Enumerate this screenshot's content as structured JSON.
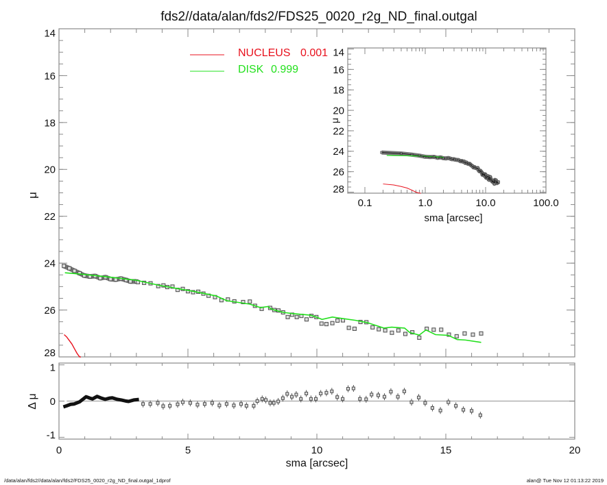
{
  "title": "fds2//data/alan/fds2/FDS25_0020_r2g_ND_final.outgal",
  "footer_left": "/data/alan/fds2//data/alan/fds2/FDS25_0020_r2g_ND_final.outgal_1dprof",
  "footer_right": "alan@  Tue Nov 12 01:13:22 2019",
  "colors": {
    "nucleus": "#e8101c",
    "disk": "#22e01c",
    "points": "#555555",
    "zero_line": "#b0b0b0"
  },
  "chart_data": [
    {
      "type": "scatter",
      "panel": "main profile",
      "xlabel": "",
      "ylabel": "μ",
      "xlim": [
        0,
        20
      ],
      "ylim": [
        28,
        14
      ],
      "y_inverted": true,
      "xticks": [
        0,
        5,
        10,
        15,
        20
      ],
      "yticks": [
        14,
        16,
        18,
        20,
        22,
        24,
        26,
        28
      ],
      "legend": [
        {
          "name": "NUCLEUS",
          "value": "0.001",
          "color": "#e8101c"
        },
        {
          "name": "DISK",
          "value": "0.999",
          "color": "#22e01c"
        }
      ],
      "legend_placement": "top-center",
      "observed_dense": {
        "x": [
          0.19,
          0.4,
          0.6,
          0.8,
          0.98,
          1.2,
          1.4,
          1.6,
          1.8,
          2.0,
          2.2,
          2.4,
          2.6,
          2.77,
          3.0
        ],
        "y": [
          24.12,
          24.22,
          24.33,
          24.43,
          24.53,
          24.57,
          24.55,
          24.64,
          24.6,
          24.68,
          24.7,
          24.66,
          24.72,
          24.78,
          24.78
        ]
      },
      "observed": {
        "x": [
          3.06,
          3.3,
          3.55,
          3.85,
          4.05,
          4.2,
          4.4,
          4.6,
          4.8,
          5.0,
          5.2,
          5.4,
          5.6,
          5.8,
          6.05,
          6.3,
          6.55,
          6.8,
          7.14,
          7.4,
          7.6,
          7.86,
          8.19,
          8.35,
          8.51,
          8.69,
          8.87,
          9.04,
          9.22,
          9.4,
          9.6,
          9.79,
          9.98,
          10.18,
          10.37,
          10.6,
          10.8,
          11.01,
          11.24,
          11.46,
          11.69,
          11.92,
          12.16,
          12.4,
          12.65,
          12.91,
          13.16,
          13.43,
          13.7,
          13.97,
          14.26,
          14.53,
          14.82,
          15.12,
          15.42,
          15.73,
          16.05,
          16.37
        ],
        "y": [
          24.81,
          24.84,
          24.86,
          24.98,
          24.95,
          25.02,
          25.0,
          25.14,
          25.1,
          25.2,
          25.24,
          25.22,
          25.3,
          25.39,
          25.45,
          25.58,
          25.55,
          25.63,
          25.66,
          25.64,
          25.82,
          25.95,
          25.91,
          26.0,
          26.02,
          26.1,
          26.3,
          26.2,
          26.3,
          26.25,
          26.4,
          26.25,
          26.3,
          26.58,
          26.6,
          26.56,
          26.45,
          26.44,
          26.76,
          26.8,
          26.51,
          26.52,
          26.74,
          26.82,
          26.87,
          26.97,
          26.87,
          27.02,
          26.95,
          27.18,
          26.8,
          26.84,
          26.84,
          27.05,
          27.12,
          27.0,
          27.05,
          27.0
        ]
      },
      "disk_model": {
        "x": [
          0.23,
          0.98,
          2.0,
          3.0,
          3.9,
          5.2,
          6.1,
          6.5,
          7.4,
          7.82,
          8.1,
          8.19,
          8.35,
          8.7,
          9.04,
          9.75,
          9.98,
          10.2,
          10.6,
          11.5,
          11.96,
          12.6,
          12.9,
          13.4,
          13.6,
          13.97,
          14.23,
          14.6,
          15.1,
          15.44,
          15.76,
          16.37
        ],
        "y": [
          24.41,
          24.48,
          24.6,
          24.73,
          24.95,
          25.2,
          25.4,
          25.6,
          25.75,
          25.9,
          25.85,
          25.93,
          26.0,
          26.1,
          26.15,
          26.22,
          26.3,
          26.4,
          26.3,
          26.44,
          26.54,
          26.77,
          26.73,
          26.77,
          26.96,
          27.07,
          26.85,
          27.05,
          27.08,
          27.26,
          27.28,
          27.38
        ]
      },
      "nucleus_model": {
        "x": [
          0.2,
          0.3,
          0.4,
          0.5,
          0.6,
          0.7,
          0.8,
          0.85
        ],
        "y": [
          27.05,
          27.15,
          27.3,
          27.45,
          27.65,
          27.85,
          28.05,
          28.15
        ]
      }
    },
    {
      "type": "scatter",
      "panel": "residuals",
      "xlabel": "sma [arcsec]",
      "ylabel": "Δ μ",
      "xlim": [
        0,
        20
      ],
      "ylim": [
        -1.05,
        1.05
      ],
      "xticks": [
        0,
        5,
        10,
        15,
        20
      ],
      "yticks": [
        -1,
        0,
        1
      ],
      "residual_dense": {
        "x": [
          0.17,
          0.3,
          0.45,
          0.59,
          0.8,
          1.05,
          1.2,
          1.3,
          1.48,
          1.65,
          1.79,
          1.95,
          2.07,
          2.25,
          2.42,
          2.6,
          2.7,
          2.9,
          3.1
        ],
        "y": [
          -0.16,
          -0.13,
          -0.09,
          -0.08,
          -0.02,
          0.12,
          0.08,
          0.06,
          0.13,
          0.08,
          0.05,
          0.08,
          0.09,
          0.05,
          0.03,
          0.0,
          -0.01,
          0.03,
          0.045
        ]
      },
      "residuals": {
        "x": [
          3.26,
          3.54,
          3.83,
          4.04,
          4.3,
          4.6,
          4.8,
          5.09,
          5.37,
          5.65,
          5.94,
          6.22,
          6.5,
          6.78,
          7.06,
          7.27,
          7.55,
          7.69,
          7.88,
          8.02,
          8.19,
          8.33,
          8.5,
          8.68,
          8.85,
          9.03,
          9.2,
          9.38,
          9.59,
          9.77,
          9.96,
          10.15,
          10.37,
          10.58,
          10.79,
          11.0,
          11.21,
          11.42,
          11.67,
          11.91,
          12.12,
          12.38,
          12.62,
          12.87,
          13.14,
          13.39,
          13.67,
          13.95,
          14.2,
          14.48,
          14.79,
          15.1,
          15.39,
          15.68,
          16.0,
          16.34
        ],
        "y": [
          -0.08,
          -0.08,
          -0.05,
          -0.14,
          -0.13,
          -0.09,
          -0.03,
          -0.05,
          -0.1,
          -0.08,
          -0.05,
          -0.12,
          -0.08,
          -0.12,
          -0.08,
          -0.13,
          -0.13,
          0.0,
          0.06,
          0.03,
          -0.05,
          -0.05,
          -0.01,
          0.08,
          0.2,
          0.12,
          0.18,
          0.06,
          0.21,
          0.06,
          0.06,
          0.21,
          0.23,
          0.27,
          0.11,
          0.06,
          0.34,
          0.35,
          0.06,
          0.05,
          0.18,
          0.16,
          0.12,
          0.26,
          0.12,
          0.27,
          -0.03,
          0.1,
          -0.05,
          -0.19,
          -0.26,
          -0.03,
          -0.13,
          -0.24,
          -0.27,
          -0.39
        ]
      }
    },
    {
      "type": "scatter",
      "panel": "inset log profile",
      "xlabel": "sma [arcsec]",
      "ylabel": "μ",
      "x_scale": "log",
      "xlim": [
        0.052,
        100
      ],
      "ylim": [
        28.1,
        13.9
      ],
      "y_inverted": true,
      "xtick_labels": [
        "0.1",
        "1.0",
        "10.0",
        "100.0"
      ],
      "xticks": [
        0.1,
        1,
        10,
        100
      ],
      "yticks": [
        14,
        16,
        18,
        20,
        22,
        24,
        26,
        28
      ]
    }
  ]
}
